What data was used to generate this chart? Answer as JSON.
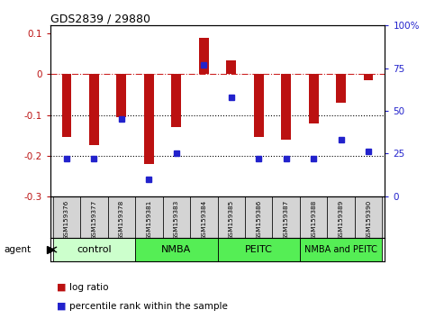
{
  "title": "GDS2839 / 29880",
  "samples": [
    "GSM159376",
    "GSM159377",
    "GSM159378",
    "GSM159381",
    "GSM159383",
    "GSM159384",
    "GSM159385",
    "GSM159386",
    "GSM159387",
    "GSM159388",
    "GSM159389",
    "GSM159390"
  ],
  "log_ratio": [
    -0.155,
    -0.175,
    -0.105,
    -0.22,
    -0.13,
    0.09,
    0.035,
    -0.155,
    -0.16,
    -0.12,
    -0.07,
    -0.015
  ],
  "percentile_rank": [
    22,
    22,
    45,
    10,
    25,
    77,
    58,
    22,
    22,
    22,
    33,
    26
  ],
  "bar_color": "#bb1111",
  "dot_color": "#2222cc",
  "groups": [
    {
      "label": "control",
      "start": 0,
      "end": 3,
      "color": "#ccffcc"
    },
    {
      "label": "NMBA",
      "start": 3,
      "end": 6,
      "color": "#55ee55"
    },
    {
      "label": "PEITC",
      "start": 6,
      "end": 9,
      "color": "#55ee55"
    },
    {
      "label": "NMBA and PEITC",
      "start": 9,
      "end": 12,
      "color": "#55ee55"
    }
  ],
  "ylim_left": [
    -0.3,
    0.12
  ],
  "ylim_right": [
    0,
    100
  ],
  "yticks_left": [
    -0.3,
    -0.2,
    -0.1,
    0.0,
    0.1
  ],
  "yticks_right": [
    0,
    25,
    50,
    75,
    100
  ],
  "hlines": [
    0.0,
    -0.1,
    -0.2
  ],
  "hline_colors": [
    "#cc2222",
    "#000000",
    "#000000"
  ],
  "hline_styles": [
    "dashdot",
    "dotted",
    "dotted"
  ],
  "background_color": "#ffffff",
  "sample_cell_color": "#d4d4d4",
  "legend_red_label": "log ratio",
  "legend_blue_label": "percentile rank within the sample",
  "bar_width": 0.35
}
